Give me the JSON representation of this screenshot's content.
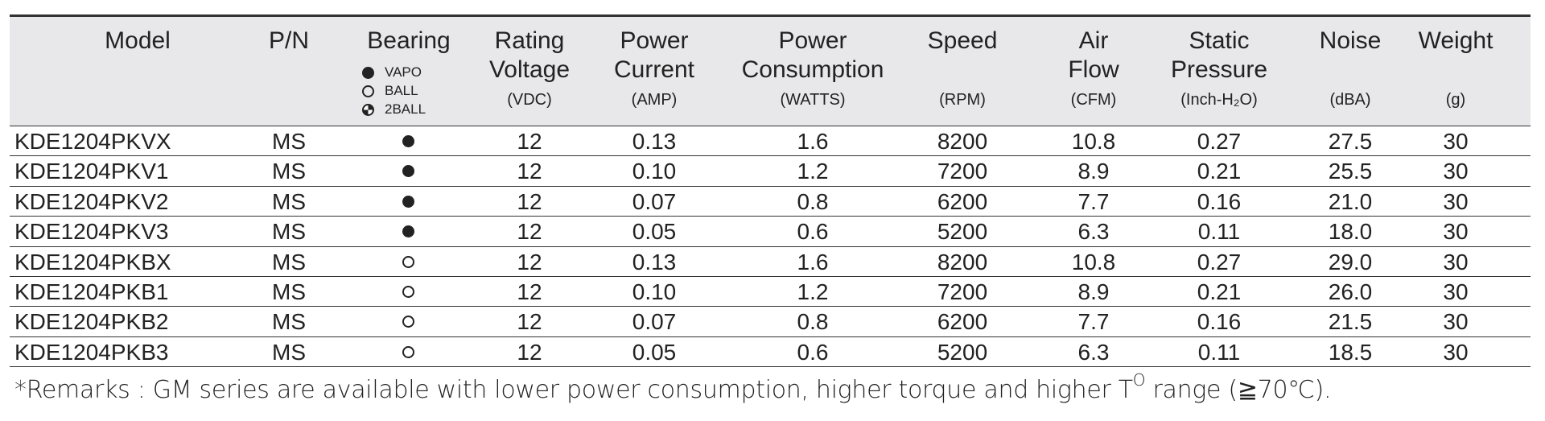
{
  "header": {
    "columns": [
      {
        "title": [
          "Model"
        ]
      },
      {
        "title": [
          "P/N"
        ]
      },
      {
        "title": [
          "Bearing"
        ],
        "legend": [
          "VAPO",
          "BALL",
          "2BALL"
        ]
      },
      {
        "title": [
          "Rating",
          "Voltage"
        ],
        "unit": "(VDC)"
      },
      {
        "title": [
          "Power",
          "Current"
        ],
        "unit": "(AMP)"
      },
      {
        "title": [
          "Power",
          "Consumption"
        ],
        "unit": "(WATTS)"
      },
      {
        "title": [
          "Speed"
        ],
        "unit": "(RPM)"
      },
      {
        "title": [
          "Air",
          "Flow"
        ],
        "unit": "(CFM)"
      },
      {
        "title": [
          "Static",
          "Pressure"
        ],
        "unit": "(Inch-H₂O)"
      },
      {
        "title": [
          "Noise"
        ],
        "unit": "(dBA)"
      },
      {
        "title": [
          "Weight"
        ],
        "unit": "(g)"
      }
    ]
  },
  "table": {
    "rows": [
      [
        "KDE1204PKVX",
        "MS",
        "12",
        "0.13",
        "1.6",
        "8200",
        "10.8",
        "0.27",
        "27.5",
        "30"
      ],
      [
        "KDE1204PKV1",
        "MS",
        "12",
        "0.10",
        "1.2",
        "7200",
        "8.9",
        "0.21",
        "25.5",
        "30"
      ],
      [
        "KDE1204PKV2",
        "MS",
        "12",
        "0.07",
        "0.8",
        "6200",
        "7.7",
        "0.16",
        "21.0",
        "30"
      ],
      [
        "KDE1204PKV3",
        "MS",
        "12",
        "0.05",
        "0.6",
        "5200",
        "6.3",
        "0.11",
        "18.0",
        "30"
      ],
      [
        "KDE1204PKBX",
        "MS",
        "12",
        "0.13",
        "1.6",
        "8200",
        "10.8",
        "0.27",
        "29.0",
        "30"
      ],
      [
        "KDE1204PKB1",
        "MS",
        "12",
        "0.10",
        "1.2",
        "7200",
        "8.9",
        "0.21",
        "26.0",
        "30"
      ],
      [
        "KDE1204PKB2",
        "MS",
        "12",
        "0.07",
        "0.8",
        "6200",
        "7.7",
        "0.16",
        "21.5",
        "30"
      ],
      [
        "KDE1204PKB3",
        "MS",
        "12",
        "0.05",
        "0.6",
        "5200",
        "6.3",
        "0.11",
        "18.5",
        "30"
      ]
    ]
  },
  "remarks": {
    "text_1": "*Remarks : GM series are available with lower power consumption, higher torque and higher T",
    "superscript": "O",
    "text_2": " range (≧70℃)."
  }
}
